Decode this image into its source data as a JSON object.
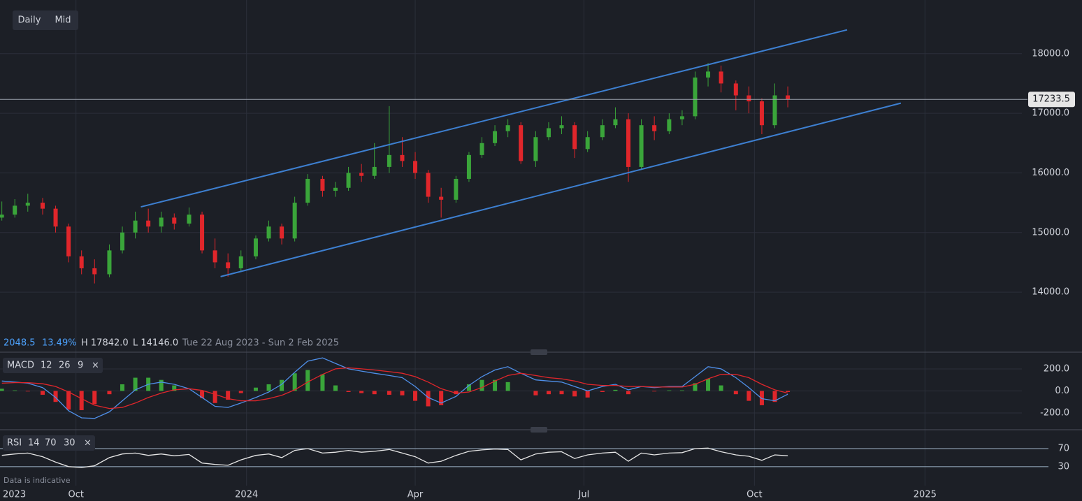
{
  "ui": {
    "buttons": [
      "Daily",
      "Mid"
    ],
    "stats": {
      "change": "2048.5",
      "change_pct": "13.49%",
      "high": "H 17842.0",
      "low": "L 14146.0",
      "range": "Tue 22 Aug 2023 - Sun 2 Feb 2025"
    },
    "year_label": "2023",
    "note": "Data is indicative"
  },
  "chart_data": [
    {
      "type": "candlestick",
      "up_color": "#3aa53a",
      "down_color": "#e0262b",
      "xlim": [
        232,
        775
      ],
      "ylim": [
        13040,
        18900
      ],
      "xticks": [
        {
          "value": 273,
          "label": "Oct"
        },
        {
          "value": 365,
          "label": "2024"
        },
        {
          "value": 456,
          "label": "Apr"
        },
        {
          "value": 547,
          "label": "Jul"
        },
        {
          "value": 639,
          "label": "Oct"
        },
        {
          "value": 731,
          "label": "2025"
        }
      ],
      "yticks": [
        {
          "value": 14000,
          "label": "14000.0"
        },
        {
          "value": 15000,
          "label": "15000.0"
        },
        {
          "value": 16000,
          "label": "16000.0"
        },
        {
          "value": 17000,
          "label": "17000.0"
        },
        {
          "value": 18000,
          "label": "18000.0"
        }
      ],
      "grid": true,
      "last": 17233.5,
      "channel_color": "#3d7fd0",
      "channels": [
        {
          "points": [
            [
              308,
              15430
            ],
            [
              689,
              18400
            ]
          ]
        },
        {
          "points": [
            [
              351,
              14260
            ],
            [
              718,
              17170
            ]
          ]
        }
      ],
      "x": [
        233,
        240,
        247,
        255,
        262,
        269,
        276,
        283,
        291,
        298,
        305,
        312,
        319,
        326,
        334,
        341,
        348,
        355,
        362,
        370,
        377,
        384,
        391,
        398,
        406,
        413,
        420,
        427,
        434,
        442,
        449,
        456,
        463,
        470,
        478,
        485,
        492,
        499,
        506,
        513,
        521,
        528,
        535,
        542,
        549,
        557,
        564,
        571,
        578,
        585,
        593,
        600,
        607,
        614,
        621,
        629,
        636,
        643,
        650,
        657
      ],
      "ohlc": [
        [
          15250,
          15520,
          15200,
          15300
        ],
        [
          15300,
          15560,
          15250,
          15450
        ],
        [
          15450,
          15650,
          15350,
          15500
        ],
        [
          15500,
          15580,
          15300,
          15400
        ],
        [
          15400,
          15450,
          15000,
          15100
        ],
        [
          15100,
          15150,
          14500,
          14600
        ],
        [
          14600,
          14700,
          14300,
          14400
        ],
        [
          14400,
          14550,
          14146,
          14300
        ],
        [
          14300,
          14800,
          14250,
          14700
        ],
        [
          14700,
          15100,
          14650,
          15000
        ],
        [
          15000,
          15350,
          14900,
          15200
        ],
        [
          15200,
          15400,
          15000,
          15100
        ],
        [
          15100,
          15350,
          15000,
          15250
        ],
        [
          15250,
          15320,
          15050,
          15150
        ],
        [
          15150,
          15420,
          15100,
          15300
        ],
        [
          15300,
          15350,
          14650,
          14700
        ],
        [
          14700,
          14900,
          14400,
          14500
        ],
        [
          14500,
          14650,
          14260,
          14400
        ],
        [
          14400,
          14700,
          14350,
          14600
        ],
        [
          14600,
          14950,
          14550,
          14900
        ],
        [
          14900,
          15200,
          14850,
          15100
        ],
        [
          15100,
          15150,
          14800,
          14900
        ],
        [
          14900,
          15600,
          14850,
          15500
        ],
        [
          15500,
          15980,
          15450,
          15900
        ],
        [
          15900,
          15950,
          15600,
          15700
        ],
        [
          15700,
          15850,
          15600,
          15750
        ],
        [
          15750,
          16100,
          15700,
          16000
        ],
        [
          16000,
          16150,
          15850,
          15950
        ],
        [
          15950,
          16500,
          15900,
          16100
        ],
        [
          16100,
          17120,
          16000,
          16300
        ],
        [
          16300,
          16600,
          16100,
          16200
        ],
        [
          16200,
          16350,
          15900,
          16000
        ],
        [
          16000,
          16050,
          15500,
          15600
        ],
        [
          15600,
          15750,
          15250,
          15550
        ],
        [
          15550,
          15950,
          15500,
          15900
        ],
        [
          15900,
          16350,
          15850,
          16300
        ],
        [
          16300,
          16600,
          16250,
          16500
        ],
        [
          16500,
          16800,
          16450,
          16700
        ],
        [
          16700,
          16900,
          16600,
          16800
        ],
        [
          16800,
          16850,
          16150,
          16200
        ],
        [
          16200,
          16700,
          16100,
          16600
        ],
        [
          16600,
          16850,
          16550,
          16750
        ],
        [
          16750,
          16950,
          16650,
          16800
        ],
        [
          16800,
          16850,
          16250,
          16400
        ],
        [
          16400,
          16700,
          16350,
          16600
        ],
        [
          16600,
          16900,
          16550,
          16800
        ],
        [
          16800,
          17100,
          16750,
          16900
        ],
        [
          16900,
          17000,
          15850,
          16100
        ],
        [
          16100,
          16900,
          16050,
          16800
        ],
        [
          16800,
          16950,
          16550,
          16700
        ],
        [
          16700,
          17000,
          16650,
          16900
        ],
        [
          16900,
          17050,
          16800,
          16950
        ],
        [
          16950,
          17700,
          16900,
          17600
        ],
        [
          17600,
          17842,
          17450,
          17700
        ],
        [
          17700,
          17800,
          17350,
          17500
        ],
        [
          17500,
          17550,
          17050,
          17300
        ],
        [
          17300,
          17450,
          17000,
          17200
        ],
        [
          17200,
          17250,
          16650,
          16800
        ],
        [
          16800,
          17500,
          16750,
          17300
        ],
        [
          17300,
          17450,
          17100,
          17233.5
        ]
      ]
    },
    {
      "type": "macd",
      "title": "MACD",
      "params": [
        12,
        26,
        9
      ],
      "close": "×",
      "ylim": [
        -340,
        333
      ],
      "yticks": [
        {
          "value": 200,
          "label": "200.0"
        },
        {
          "value": 0,
          "label": "0.0"
        },
        {
          "value": -200,
          "label": "-200.0"
        }
      ],
      "series": [
        {
          "color": "#4f8fe8",
          "values": [
            90,
            80,
            70,
            30,
            -60,
            -180,
            -245,
            -250,
            -190,
            -90,
            10,
            60,
            80,
            60,
            20,
            -60,
            -140,
            -150,
            -110,
            -60,
            -10,
            60,
            170,
            270,
            300,
            250,
            200,
            180,
            160,
            140,
            120,
            40,
            -60,
            -110,
            -50,
            50,
            130,
            190,
            220,
            160,
            100,
            90,
            80,
            40,
            0,
            40,
            60,
            10,
            40,
            30,
            40,
            40,
            130,
            220,
            200,
            120,
            30,
            -70,
            -90,
            -30
          ]
        },
        {
          "color": "#e0262b",
          "values": [
            70,
            75,
            75,
            65,
            40,
            -10,
            -70,
            -130,
            -160,
            -150,
            -110,
            -60,
            -20,
            10,
            20,
            5,
            -30,
            -70,
            -90,
            -90,
            -70,
            -40,
            10,
            80,
            150,
            200,
            210,
            200,
            190,
            175,
            160,
            130,
            80,
            20,
            -20,
            -10,
            30,
            90,
            140,
            160,
            140,
            120,
            110,
            90,
            60,
            50,
            50,
            40,
            40,
            35,
            35,
            35,
            60,
            110,
            150,
            150,
            120,
            60,
            10,
            -20
          ]
        }
      ],
      "histogram": {
        "up_color": "#3aa53a",
        "down_color": "#e0262b",
        "values": [
          20,
          5,
          -5,
          -35,
          -100,
          -170,
          -175,
          -120,
          -30,
          60,
          120,
          120,
          100,
          50,
          0,
          -65,
          -110,
          -80,
          -20,
          30,
          60,
          100,
          160,
          190,
          150,
          50,
          -10,
          -20,
          -30,
          -35,
          -40,
          -90,
          -140,
          -130,
          -30,
          60,
          100,
          100,
          80,
          0,
          -40,
          -30,
          -30,
          -50,
          -60,
          -10,
          10,
          -30,
          0,
          -5,
          5,
          5,
          70,
          110,
          50,
          -30,
          -90,
          -130,
          -100,
          -10
        ]
      }
    },
    {
      "type": "rsi",
      "title": "RSI",
      "params": [
        14,
        70,
        30
      ],
      "close": "×",
      "color": "#e6e6e6",
      "level_color": "#9fb3c8",
      "ylim": [
        -12,
        104
      ],
      "yticks": [
        70,
        30
      ],
      "values": [
        55,
        58,
        60,
        52,
        40,
        30,
        28,
        32,
        50,
        58,
        60,
        55,
        58,
        54,
        57,
        38,
        35,
        33,
        45,
        55,
        58,
        50,
        66,
        70,
        60,
        62,
        66,
        62,
        64,
        68,
        60,
        52,
        38,
        42,
        55,
        64,
        67,
        69,
        68,
        45,
        58,
        62,
        63,
        48,
        56,
        60,
        62,
        42,
        60,
        56,
        60,
        61,
        70,
        71,
        63,
        56,
        53,
        44,
        56,
        54
      ]
    }
  ]
}
